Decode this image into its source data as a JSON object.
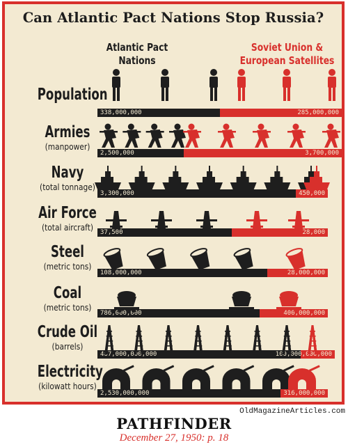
{
  "title": "Can Atlantic Pact Nations Stop Russia?",
  "columns": {
    "atlantic": "Atlantic Pact Nations",
    "soviet": "Soviet Union & European Satellites"
  },
  "colors": {
    "dark": "#1e1e1e",
    "red": "#d8302c",
    "paper": "#f3ead2"
  },
  "rows": [
    {
      "name": "Population",
      "sub": "",
      "ap_value": "338,000,000",
      "su_value": "285,000,000",
      "icon": "person-icon",
      "ap_icons": 3,
      "su_icons": 3
    },
    {
      "name": "Armies",
      "sub": "(manpower)",
      "ap_value": "2,500,000",
      "su_value": "3,700,000",
      "icon": "soldier-icon",
      "ap_icons": 4,
      "su_icons": 5
    },
    {
      "name": "Navy",
      "sub": "(total tonnage)",
      "ap_value": "3,300,000",
      "su_value": "450,000",
      "icon": "ship-icon",
      "ap_icons": 7,
      "su_icons": 1
    },
    {
      "name": "Air Force",
      "sub": "(total aircraft)",
      "ap_value": "37,500",
      "su_value": "28,000",
      "icon": "plane-icon",
      "ap_icons": 3,
      "su_icons": 2
    },
    {
      "name": "Steel",
      "sub": "(metric tons)",
      "ap_value": "108,000,000",
      "su_value": "28,000,000",
      "icon": "crucible-icon",
      "ap_icons": 4,
      "su_icons": 1
    },
    {
      "name": "Coal",
      "sub": "(metric tons)",
      "ap_value": "786,000,000",
      "su_value": "400,000,000",
      "icon": "coal-car-icon",
      "ap_icons": 2,
      "su_icons": 1
    },
    {
      "name": "Crude Oil",
      "sub": "(barrels)",
      "ap_value": "467,000,000,000",
      "su_value": "100,000,000,000",
      "icon": "oil-derrick-icon",
      "ap_icons": 7,
      "su_icons": 1
    },
    {
      "name": "Electricity",
      "sub": "(kilowatt hours)",
      "ap_value": "2,530,000,000",
      "su_value": "316,000,000",
      "icon": "generator-icon",
      "ap_icons": 5,
      "su_icons": 1
    }
  ],
  "credit": "OldMagazineArticles.com",
  "magazine": "PATHFINDER",
  "date": "December 27, 1950: p. 18"
}
